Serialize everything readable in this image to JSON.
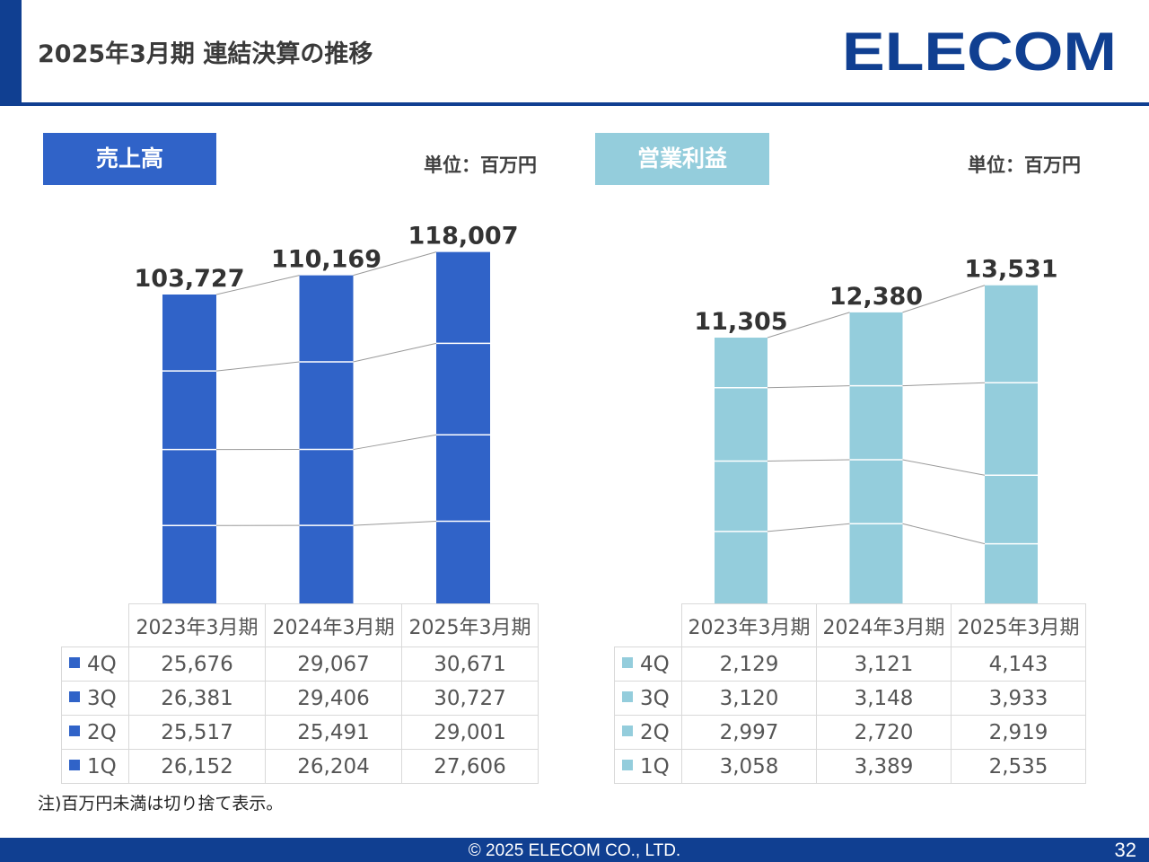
{
  "page_title": "2025年3月期 連結決算の推移",
  "logo_text": "ELECOM",
  "footer": {
    "copyright": "© 2025 ELECOM CO., LTD.",
    "page_number": "32"
  },
  "note": "注)百万円未満は切り捨て表示。",
  "colors": {
    "brand": "#103f91",
    "sales": "#3063c8",
    "profit": "#94cddc",
    "connector": "#9a9a9a"
  },
  "chart_data": [
    {
      "type": "bar",
      "stacked": true,
      "title": "売上高",
      "unit": "単位：百万円",
      "categories": [
        "2023年3月期",
        "2024年3月期",
        "2025年3月期"
      ],
      "totals": [
        "103,727",
        "110,169",
        "118,007"
      ],
      "series": [
        {
          "name": "1Q",
          "values": [
            26152,
            26204,
            27606
          ],
          "labels": [
            "26,152",
            "26,204",
            "27,606"
          ]
        },
        {
          "name": "2Q",
          "values": [
            25517,
            25491,
            29001
          ],
          "labels": [
            "25,517",
            "25,491",
            "29,001"
          ]
        },
        {
          "name": "3Q",
          "values": [
            26381,
            29406,
            30727
          ],
          "labels": [
            "26,381",
            "29,406",
            "30,727"
          ]
        },
        {
          "name": "4Q",
          "values": [
            25676,
            29067,
            30671
          ],
          "labels": [
            "25,676",
            "29,067",
            "30,671"
          ]
        }
      ],
      "table_order": [
        "4Q",
        "3Q",
        "2Q",
        "1Q"
      ],
      "color": "#3063c8"
    },
    {
      "type": "bar",
      "stacked": true,
      "title": "営業利益",
      "unit": "単位：百万円",
      "categories": [
        "2023年3月期",
        "2024年3月期",
        "2025年3月期"
      ],
      "totals": [
        "11,305",
        "12,380",
        "13,531"
      ],
      "series": [
        {
          "name": "1Q",
          "values": [
            3058,
            3389,
            2535
          ],
          "labels": [
            "3,058",
            "3,389",
            "2,535"
          ]
        },
        {
          "name": "2Q",
          "values": [
            2997,
            2720,
            2919
          ],
          "labels": [
            "2,997",
            "2,720",
            "2,919"
          ]
        },
        {
          "name": "3Q",
          "values": [
            3120,
            3148,
            3933
          ],
          "labels": [
            "3,120",
            "3,148",
            "3,933"
          ]
        },
        {
          "name": "4Q",
          "values": [
            2129,
            3121,
            4143
          ],
          "labels": [
            "2,129",
            "3,121",
            "4,143"
          ]
        }
      ],
      "table_order": [
        "4Q",
        "3Q",
        "2Q",
        "1Q"
      ],
      "color": "#94cddc"
    }
  ]
}
